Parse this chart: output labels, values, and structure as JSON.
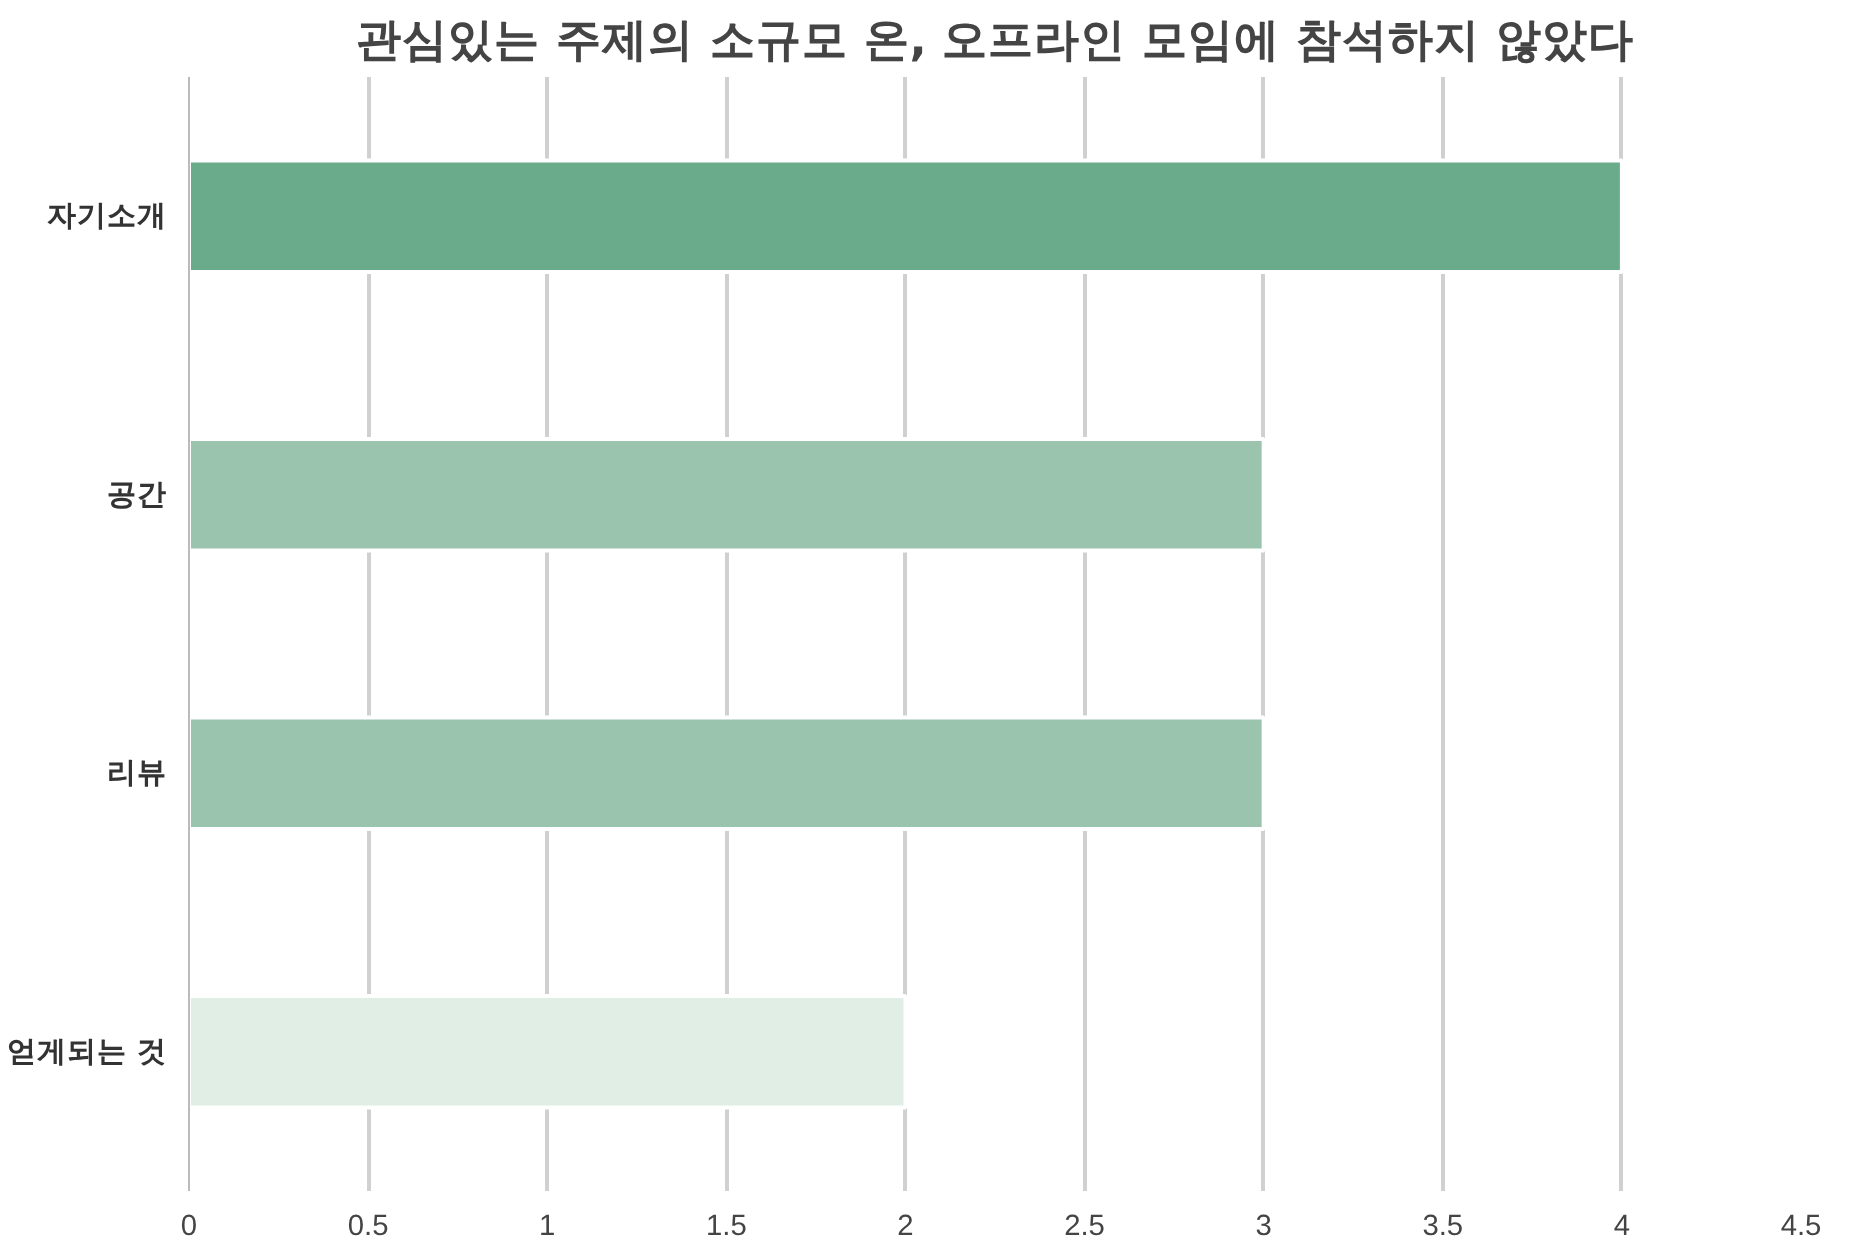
{
  "chart_data": {
    "type": "bar",
    "orientation": "horizontal",
    "title": "관심있는 주제의 소규모 온, 오프라인 모임에 참석하지 않았다",
    "categories": [
      "자기소개",
      "공간",
      "리뷰",
      "얻게되는 것"
    ],
    "values": [
      4,
      3,
      3,
      2
    ],
    "colors": [
      "#6aab8c",
      "#9ac4ae",
      "#9ac4ae",
      "#e0eee6"
    ],
    "xlim": [
      0,
      4.5
    ],
    "xticks": [
      0,
      0.5,
      1,
      1.5,
      2,
      2.5,
      3,
      3.5,
      4,
      4.5
    ],
    "grid": "x"
  }
}
